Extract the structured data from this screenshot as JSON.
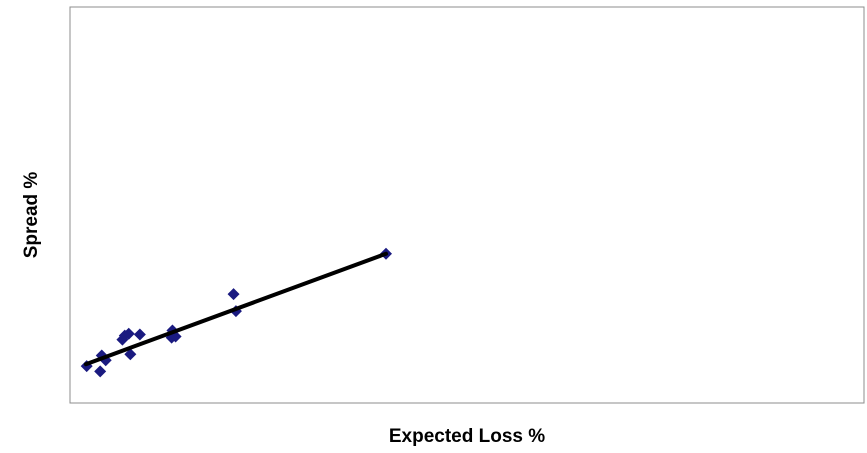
{
  "chart_data": {
    "type": "scatter",
    "title": "",
    "xlabel": "Expected Loss %",
    "ylabel": "Spread %",
    "xlim": [
      0,
      100
    ],
    "ylim": [
      0,
      100
    ],
    "grid": false,
    "legend": "none",
    "marker_color": "#1a1a80",
    "line_color": "#000000",
    "series": [
      {
        "values": [
          {
            "x": 2.1,
            "y": 9.3
          },
          {
            "x": 3.8,
            "y": 8.0
          },
          {
            "x": 4.0,
            "y": 12.0
          },
          {
            "x": 4.5,
            "y": 10.8
          },
          {
            "x": 6.6,
            "y": 16.0
          },
          {
            "x": 6.9,
            "y": 17.0
          },
          {
            "x": 7.4,
            "y": 17.5
          },
          {
            "x": 7.6,
            "y": 12.3
          },
          {
            "x": 8.8,
            "y": 17.3
          },
          {
            "x": 12.9,
            "y": 18.3
          },
          {
            "x": 12.8,
            "y": 16.5
          },
          {
            "x": 13.3,
            "y": 16.8
          },
          {
            "x": 20.6,
            "y": 27.5
          },
          {
            "x": 20.9,
            "y": 23.2
          },
          {
            "x": 39.8,
            "y": 37.7
          }
        ]
      }
    ],
    "trendline": {
      "x": [
        2.0,
        39.8
      ],
      "y": [
        9.8,
        37.7
      ]
    }
  }
}
